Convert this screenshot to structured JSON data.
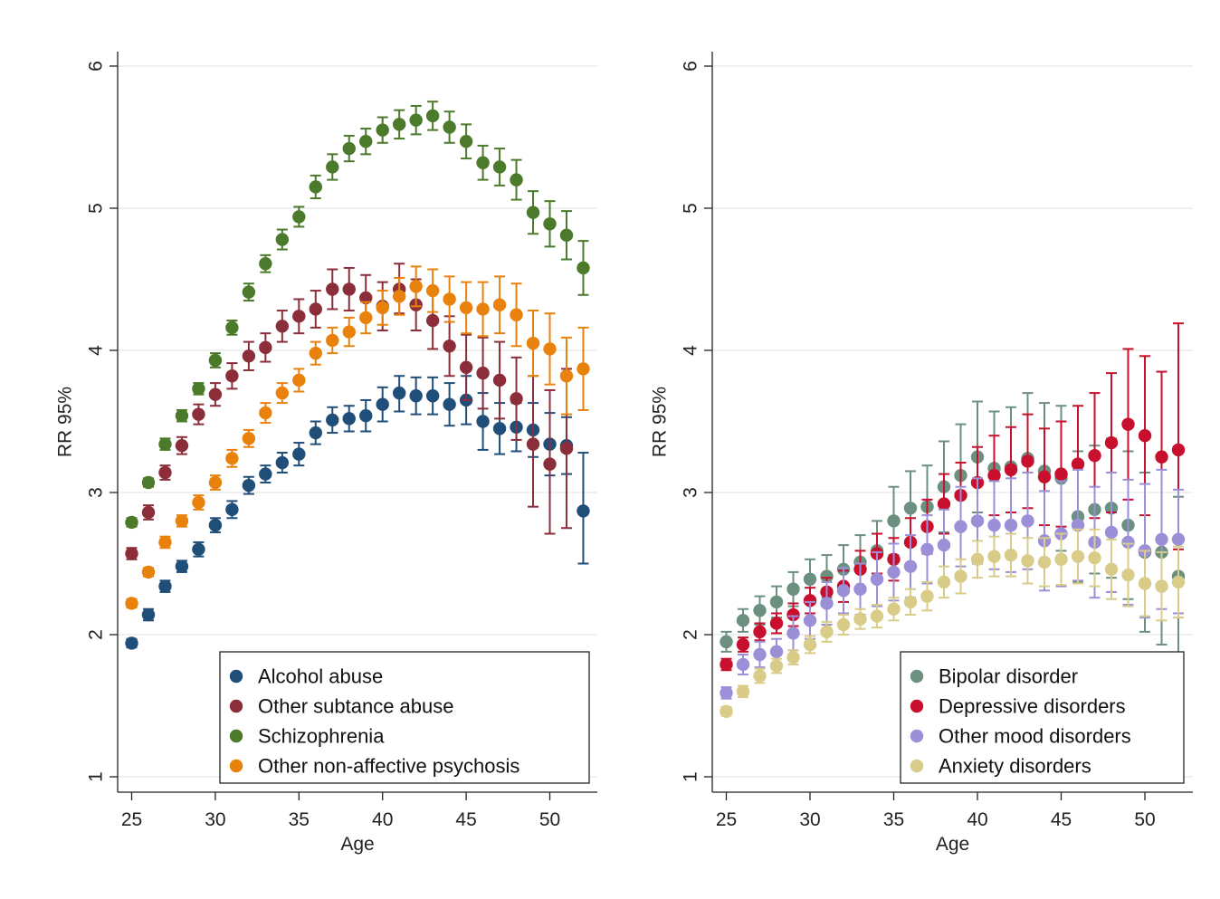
{
  "chart_data": [
    {
      "type": "scatter",
      "xlabel": "Age",
      "ylabel": "RR 95%",
      "xticks": [
        "25",
        "30",
        "35",
        "40",
        "45",
        "50"
      ],
      "yticks": [
        "1",
        "2",
        "3",
        "4",
        "5",
        "6"
      ],
      "xlim": [
        24.5,
        52.5
      ],
      "ylim": [
        0.9,
        6.1
      ],
      "grid": true,
      "legend_position": "bottom-right",
      "x": [
        25,
        26,
        27,
        28,
        29,
        30,
        31,
        32,
        33,
        34,
        35,
        36,
        37,
        38,
        39,
        40,
        41,
        42,
        43,
        44,
        45,
        46,
        47,
        48,
        49,
        50,
        51,
        52
      ],
      "series": [
        {
          "name": "Alcohol abuse",
          "color": "#1f4e79",
          "values": [
            1.94,
            2.14,
            2.34,
            2.48,
            2.6,
            2.77,
            2.88,
            3.05,
            3.13,
            3.21,
            3.27,
            3.42,
            3.51,
            3.52,
            3.54,
            3.62,
            3.7,
            3.68,
            3.68,
            3.62,
            3.65,
            3.5,
            3.45,
            3.46,
            3.44,
            3.34,
            3.33,
            2.87
          ],
          "lower": [
            1.91,
            2.1,
            2.3,
            2.44,
            2.55,
            2.72,
            2.82,
            2.99,
            3.07,
            3.14,
            3.19,
            3.34,
            3.42,
            3.43,
            3.43,
            3.5,
            3.57,
            3.55,
            3.55,
            3.47,
            3.48,
            3.3,
            3.27,
            3.29,
            3.25,
            3.12,
            3.13,
            2.5
          ],
          "upper": [
            1.97,
            2.18,
            2.38,
            2.52,
            2.65,
            2.82,
            2.94,
            3.11,
            3.19,
            3.28,
            3.35,
            3.5,
            3.6,
            3.61,
            3.65,
            3.74,
            3.82,
            3.81,
            3.81,
            3.77,
            3.82,
            3.7,
            3.63,
            3.63,
            3.63,
            3.56,
            3.53,
            3.28
          ]
        },
        {
          "name": "Other subtance abuse",
          "color": "#8b2e3a",
          "values": [
            2.57,
            2.86,
            3.14,
            3.33,
            3.55,
            3.69,
            3.82,
            3.96,
            4.02,
            4.17,
            4.24,
            4.29,
            4.43,
            4.43,
            4.37,
            4.31,
            4.43,
            4.32,
            4.21,
            4.03,
            3.88,
            3.84,
            3.79,
            3.66,
            3.34,
            3.2,
            3.31,
            null
          ],
          "lower": [
            2.53,
            2.81,
            3.09,
            3.27,
            3.48,
            3.61,
            3.73,
            3.86,
            3.92,
            4.06,
            4.12,
            4.16,
            4.29,
            4.28,
            4.21,
            4.14,
            4.26,
            4.14,
            4.01,
            3.82,
            3.65,
            3.59,
            3.52,
            3.37,
            2.9,
            2.71,
            2.75,
            null
          ],
          "upper": [
            2.61,
            2.91,
            3.19,
            3.39,
            3.62,
            3.77,
            3.91,
            4.06,
            4.12,
            4.28,
            4.36,
            4.42,
            4.57,
            4.58,
            4.53,
            4.48,
            4.61,
            4.5,
            4.41,
            4.24,
            4.11,
            4.09,
            4.06,
            3.95,
            3.82,
            3.72,
            3.87,
            null
          ]
        },
        {
          "name": "Schizophrenia",
          "color": "#4a7a2a",
          "values": [
            2.79,
            3.07,
            3.34,
            3.54,
            3.73,
            3.93,
            4.16,
            4.41,
            4.61,
            4.78,
            4.94,
            5.15,
            5.29,
            5.42,
            5.47,
            5.55,
            5.59,
            5.62,
            5.65,
            5.57,
            5.47,
            5.32,
            5.29,
            5.2,
            4.97,
            4.89,
            4.81,
            4.58
          ],
          "lower": [
            2.76,
            3.04,
            3.3,
            3.5,
            3.69,
            3.88,
            4.11,
            4.35,
            4.55,
            4.71,
            4.87,
            5.07,
            5.2,
            5.33,
            5.38,
            5.46,
            5.49,
            5.52,
            5.55,
            5.46,
            5.35,
            5.2,
            5.16,
            5.06,
            4.82,
            4.73,
            4.64,
            4.39
          ],
          "upper": [
            2.82,
            3.1,
            3.38,
            3.58,
            3.77,
            3.98,
            4.21,
            4.47,
            4.67,
            4.85,
            5.01,
            5.23,
            5.38,
            5.51,
            5.56,
            5.64,
            5.69,
            5.72,
            5.75,
            5.68,
            5.59,
            5.44,
            5.42,
            5.34,
            5.12,
            5.05,
            4.98,
            4.77
          ]
        },
        {
          "name": "Other non-affective psychosis",
          "color": "#e8820c",
          "values": [
            2.22,
            2.44,
            2.65,
            2.8,
            2.93,
            3.07,
            3.24,
            3.38,
            3.56,
            3.7,
            3.79,
            3.98,
            4.07,
            4.13,
            4.23,
            4.3,
            4.38,
            4.45,
            4.42,
            4.36,
            4.3,
            4.29,
            4.32,
            4.25,
            4.05,
            4.01,
            3.82,
            3.87
          ],
          "lower": [
            2.19,
            2.41,
            2.61,
            2.76,
            2.88,
            3.02,
            3.18,
            3.32,
            3.49,
            3.63,
            3.71,
            3.9,
            3.98,
            4.03,
            4.12,
            4.18,
            4.25,
            4.31,
            4.27,
            4.2,
            4.12,
            4.1,
            4.12,
            4.03,
            3.82,
            3.76,
            3.55,
            3.58
          ],
          "upper": [
            2.25,
            2.47,
            2.69,
            2.84,
            2.98,
            3.12,
            3.3,
            3.44,
            3.63,
            3.77,
            3.87,
            4.06,
            4.16,
            4.23,
            4.34,
            4.42,
            4.51,
            4.59,
            4.57,
            4.52,
            4.48,
            4.48,
            4.52,
            4.47,
            4.28,
            4.26,
            4.09,
            4.16
          ]
        }
      ]
    },
    {
      "type": "scatter",
      "xlabel": "Age",
      "ylabel": "RR 95%",
      "xticks": [
        "25",
        "30",
        "35",
        "40",
        "45",
        "50"
      ],
      "yticks": [
        "1",
        "2",
        "3",
        "4",
        "5",
        "6"
      ],
      "xlim": [
        24.5,
        52.5
      ],
      "ylim": [
        0.9,
        6.1
      ],
      "grid": true,
      "legend_position": "bottom-right",
      "x": [
        25,
        26,
        27,
        28,
        29,
        30,
        31,
        32,
        33,
        34,
        35,
        36,
        37,
        38,
        39,
        40,
        41,
        42,
        43,
        44,
        45,
        46,
        47,
        48,
        49,
        50,
        51,
        52
      ],
      "series": [
        {
          "name": "Bipolar disorder",
          "color": "#6b9080",
          "values": [
            1.95,
            2.1,
            2.17,
            2.23,
            2.32,
            2.39,
            2.41,
            2.46,
            2.51,
            2.59,
            2.8,
            2.89,
            2.9,
            3.04,
            3.12,
            3.25,
            3.17,
            3.18,
            3.24,
            3.15,
            3.1,
            2.83,
            2.88,
            2.89,
            2.77,
            2.58,
            2.58,
            2.41
          ],
          "lower": [
            1.88,
            2.02,
            2.07,
            2.12,
            2.2,
            2.25,
            2.26,
            2.29,
            2.32,
            2.38,
            2.56,
            2.63,
            2.61,
            2.72,
            2.76,
            2.86,
            2.77,
            2.76,
            2.78,
            2.67,
            2.59,
            2.37,
            2.43,
            2.4,
            2.25,
            2.02,
            1.93,
            1.85
          ],
          "upper": [
            2.02,
            2.18,
            2.27,
            2.34,
            2.44,
            2.53,
            2.56,
            2.63,
            2.7,
            2.8,
            3.04,
            3.15,
            3.19,
            3.36,
            3.48,
            3.64,
            3.57,
            3.6,
            3.7,
            3.63,
            3.61,
            3.29,
            3.33,
            3.38,
            3.29,
            3.14,
            3.23,
            2.97
          ]
        },
        {
          "name": "Depressive disorders",
          "color": "#c8102e",
          "values": [
            1.79,
            1.93,
            2.02,
            2.08,
            2.14,
            2.24,
            2.3,
            2.34,
            2.46,
            2.57,
            2.53,
            2.65,
            2.76,
            2.92,
            2.98,
            3.07,
            3.12,
            3.16,
            3.22,
            3.11,
            3.13,
            3.2,
            3.26,
            3.35,
            3.48,
            3.4,
            3.25,
            3.3
          ],
          "lower": [
            1.75,
            1.88,
            1.96,
            2.01,
            2.06,
            2.15,
            2.2,
            2.23,
            2.33,
            2.43,
            2.38,
            2.48,
            2.57,
            2.71,
            2.75,
            2.82,
            2.84,
            2.86,
            2.89,
            2.77,
            2.76,
            2.79,
            2.82,
            2.86,
            2.95,
            2.84,
            2.65,
            2.6
          ],
          "upper": [
            1.83,
            1.98,
            2.08,
            2.15,
            2.22,
            2.33,
            2.4,
            2.45,
            2.59,
            2.71,
            2.68,
            2.82,
            2.95,
            3.13,
            3.21,
            3.32,
            3.4,
            3.46,
            3.55,
            3.45,
            3.5,
            3.61,
            3.7,
            3.84,
            4.01,
            3.96,
            3.85,
            4.19
          ]
        },
        {
          "name": "Other mood disorders",
          "color": "#9b8fd8",
          "values": [
            1.59,
            1.79,
            1.86,
            1.88,
            2.01,
            2.1,
            2.22,
            2.31,
            2.32,
            2.39,
            2.44,
            2.48,
            2.6,
            2.63,
            2.76,
            2.8,
            2.77,
            2.77,
            2.8,
            2.66,
            2.71,
            2.77,
            2.65,
            2.72,
            2.65,
            2.59,
            2.67,
            2.67
          ],
          "lower": [
            1.55,
            1.72,
            1.77,
            1.79,
            1.89,
            1.97,
            2.07,
            2.15,
            2.14,
            2.2,
            2.24,
            2.26,
            2.36,
            2.38,
            2.48,
            2.5,
            2.46,
            2.44,
            2.46,
            2.31,
            2.34,
            2.38,
            2.26,
            2.3,
            2.21,
            2.12,
            2.18,
            2.15
          ],
          "upper": [
            1.63,
            1.86,
            1.95,
            1.97,
            2.13,
            2.23,
            2.37,
            2.47,
            2.5,
            2.58,
            2.64,
            2.7,
            2.84,
            2.88,
            3.04,
            3.1,
            3.08,
            3.1,
            3.14,
            3.01,
            3.08,
            3.16,
            3.04,
            3.14,
            3.09,
            3.06,
            3.16,
            3.02
          ]
        },
        {
          "name": "Anxiety disorders",
          "color": "#d8cc88",
          "values": [
            1.46,
            1.6,
            1.71,
            1.78,
            1.84,
            1.93,
            2.02,
            2.07,
            2.11,
            2.13,
            2.18,
            2.23,
            2.27,
            2.37,
            2.41,
            2.53,
            2.55,
            2.56,
            2.52,
            2.51,
            2.53,
            2.55,
            2.54,
            2.46,
            2.42,
            2.36,
            2.34,
            2.37
          ],
          "lower": [
            1.43,
            1.56,
            1.66,
            1.73,
            1.79,
            1.87,
            1.95,
            2.0,
            2.04,
            2.05,
            2.1,
            2.14,
            2.17,
            2.26,
            2.29,
            2.4,
            2.41,
            2.41,
            2.36,
            2.34,
            2.35,
            2.36,
            2.34,
            2.25,
            2.2,
            2.13,
            2.1,
            2.12
          ],
          "upper": [
            1.49,
            1.64,
            1.76,
            1.83,
            1.89,
            1.99,
            2.09,
            2.14,
            2.18,
            2.21,
            2.26,
            2.32,
            2.37,
            2.48,
            2.53,
            2.66,
            2.69,
            2.71,
            2.68,
            2.68,
            2.71,
            2.74,
            2.74,
            2.67,
            2.64,
            2.59,
            2.58,
            2.62
          ]
        }
      ]
    }
  ]
}
